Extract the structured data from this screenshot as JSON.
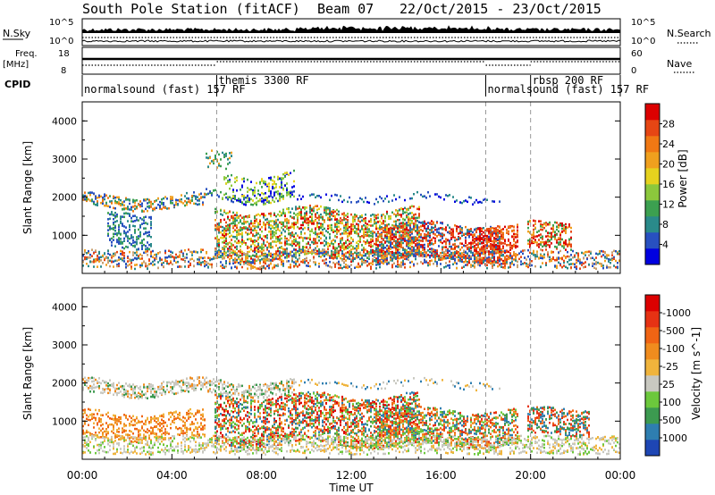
{
  "header": {
    "station": "South Pole Station (fitACF)",
    "beam": "Beam 07",
    "dates": "22/Oct/2015 - 23/Oct/2015"
  },
  "top_panels": {
    "nsky_label": "N.Sky",
    "nsearch_label": "N.Search",
    "nsky_ticks": [
      "10^5",
      "10^0"
    ],
    "nsearch_ticks": [
      "10^5",
      "10^0"
    ],
    "freq_label_1": "Freq.",
    "freq_label_2": "[MHz]",
    "freq_ticks": [
      "18",
      "8"
    ],
    "nave_label": "Nave",
    "nave_ticks": [
      "60",
      "0"
    ],
    "cpid_label": "CPID",
    "cpid_segments": [
      {
        "text": "normalsound (fast) 157 RF",
        "start_h": 0
      },
      {
        "text": "themis 3300 RF",
        "start_h": 6
      },
      {
        "text": "normalsound (fast) 157 RF",
        "start_h": 18
      },
      {
        "text": "rbsp 200 RF",
        "start_h": 20
      }
    ]
  },
  "chart_data": [
    {
      "type": "heatmap",
      "name": "power",
      "ylabel": "Slant Range [km]",
      "ylim": [
        0,
        4500
      ],
      "yticks": [
        1000,
        2000,
        3000,
        4000
      ],
      "xlabel": "Time UT",
      "xlim_hours": [
        0,
        24
      ],
      "xticks": [
        "00:00",
        "04:00",
        "08:00",
        "12:00",
        "16:00",
        "20:00",
        "00:00"
      ],
      "colorbar": {
        "label": "Power [dB]",
        "ticks": [
          "4",
          "8",
          "12",
          "16",
          "20",
          "24",
          "28"
        ],
        "colors": [
          "#0000e0",
          "#2850c0",
          "#2a8a8a",
          "#3ca050",
          "#8cc83c",
          "#e6d21e",
          "#f0a01e",
          "#f07814",
          "#e64614",
          "#dc0000"
        ]
      }
    },
    {
      "type": "heatmap",
      "name": "velocity",
      "ylabel": "Slant Range [km]",
      "ylim": [
        0,
        4500
      ],
      "yticks": [
        1000,
        2000,
        3000,
        4000
      ],
      "xlabel": "Time UT",
      "xlim_hours": [
        0,
        24
      ],
      "xticks": [
        "00:00",
        "04:00",
        "08:00",
        "12:00",
        "16:00",
        "20:00",
        "00:00"
      ],
      "colorbar": {
        "label": "Velocity [m s^-1]",
        "ticks": [
          "1000",
          "500",
          "100",
          "25",
          "-25",
          "-100",
          "-500",
          "-1000"
        ],
        "colors": [
          "#1e46b4",
          "#2e7eb0",
          "#3c9a50",
          "#6cc83c",
          "#c8c8c0",
          "#f0b43c",
          "#f08c1e",
          "#f06414",
          "#e63214",
          "#dc0000"
        ]
      }
    }
  ]
}
